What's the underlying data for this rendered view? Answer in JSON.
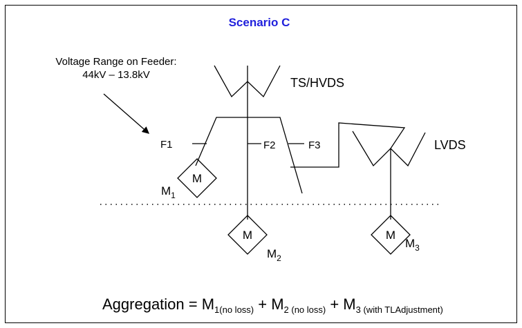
{
  "title": "Scenario C",
  "voltage_note": {
    "line1": "Voltage Range on Feeder:",
    "line2": "44kV – 13.8kV"
  },
  "stations": {
    "hv": "TS/HVDS",
    "lv": "LVDS"
  },
  "feeders": [
    "F1",
    "F2",
    "F3"
  ],
  "meters": [
    {
      "symbol": "M",
      "label": "M",
      "sub": "1"
    },
    {
      "symbol": "M",
      "label": "M",
      "sub": "2"
    },
    {
      "symbol": "M",
      "label": "M",
      "sub": "3"
    }
  ],
  "aggregation": [
    "Aggregation = M",
    "1(no loss)",
    " + M",
    "2 (no loss)",
    " + M",
    "3 (with TLAdjustment)"
  ]
}
